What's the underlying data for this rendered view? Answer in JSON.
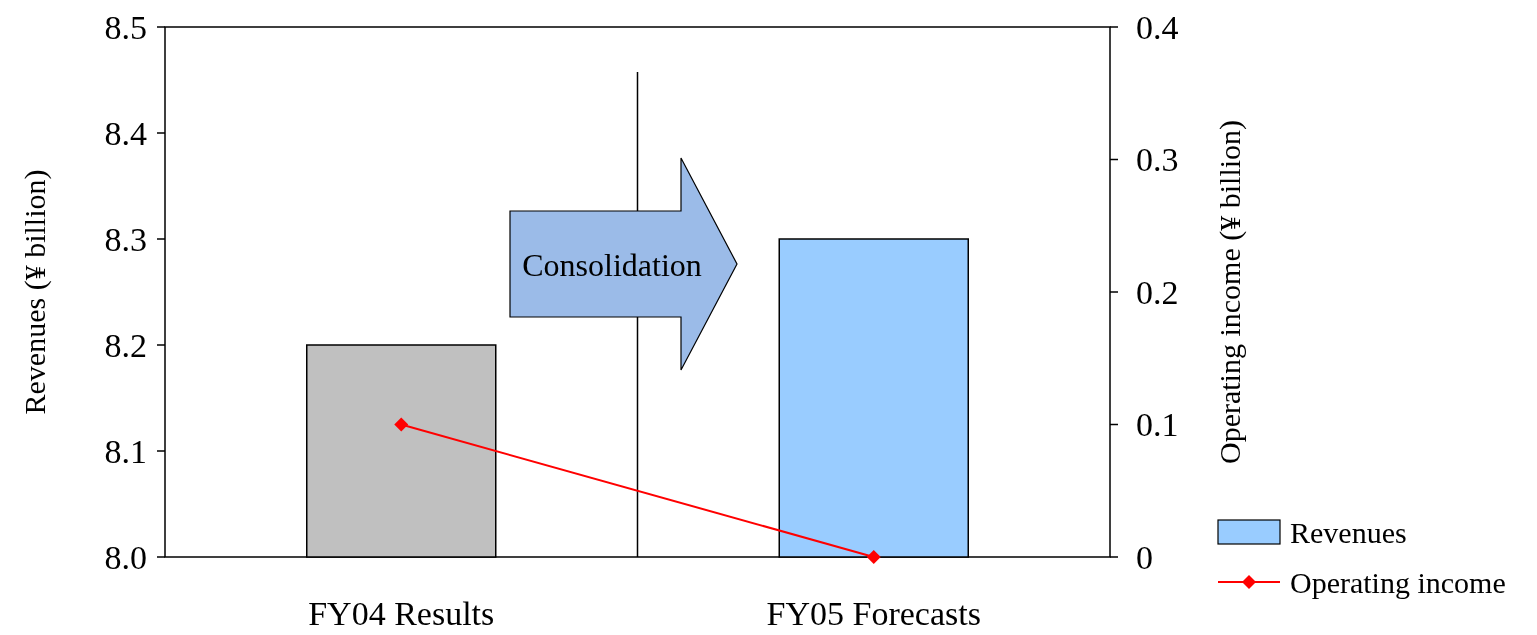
{
  "chart_data": {
    "type": "bar",
    "categories": [
      "FY04 Results",
      "FY05 Forecasts"
    ],
    "ylabel": "Revenues (¥ billion)",
    "y2label": "Operating income (¥ billion)",
    "ylim": [
      8.0,
      8.5
    ],
    "yticks": [
      {
        "value": 8,
        "label": "8.0"
      },
      {
        "value": 8.1,
        "label": "8.1"
      },
      {
        "value": 8.2,
        "label": "8.2"
      },
      {
        "value": 8.3,
        "label": "8.3"
      },
      {
        "value": 8.4,
        "label": "8.4"
      },
      {
        "value": 8.5,
        "label": "8.5"
      }
    ],
    "y2lim": [
      0,
      0.4
    ],
    "y2ticks": [
      0,
      0.1,
      0.2,
      0.3,
      0.4
    ],
    "series": [
      {
        "name": "Revenues",
        "color": "#99ccff",
        "colors": [
          "#c0c0c0",
          "#99ccff"
        ],
        "values": [
          8.2,
          8.3
        ]
      },
      {
        "name": "Operating income",
        "type": "line",
        "axis": "y2",
        "color": "#ff0000",
        "marker": "diamond",
        "values": [
          0.1,
          0
        ]
      }
    ],
    "annotations": [
      "Consolidation"
    ],
    "legend": "bottom right",
    "grid": false
  }
}
